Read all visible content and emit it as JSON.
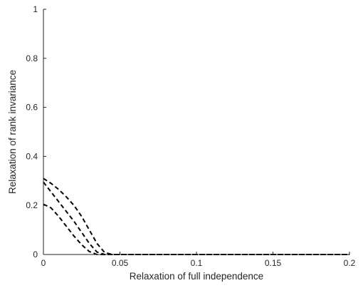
{
  "chart_data": {
    "type": "line",
    "title": "",
    "xlabel": "Relaxation of full independence",
    "ylabel": "Relaxation of rank invariance",
    "xlim": [
      0,
      0.2
    ],
    "ylim": [
      0,
      1
    ],
    "x_ticks": [
      0,
      0.05,
      0.1,
      0.15,
      0.2
    ],
    "x_tick_labels": [
      "0",
      "0.05",
      "0.1",
      "0.15",
      "0.2"
    ],
    "y_ticks": [
      0,
      0.2,
      0.4,
      0.6,
      0.8,
      1
    ],
    "y_tick_labels": [
      "0",
      "0.2",
      "0.4",
      "0.6",
      "0.8",
      "1"
    ],
    "grid": false,
    "line_style": "dashed",
    "line_color": "#000000",
    "series": [
      {
        "x": [
          0,
          0.005,
          0.01,
          0.015,
          0.02,
          0.025,
          0.03,
          0.035,
          0.04,
          0.045,
          0.05,
          0.1,
          0.15,
          0.2
        ],
        "y": [
          0.31,
          0.29,
          0.265,
          0.235,
          0.2,
          0.155,
          0.1,
          0.045,
          0.008,
          0,
          0,
          0,
          0,
          0
        ]
      },
      {
        "x": [
          0,
          0.005,
          0.01,
          0.015,
          0.02,
          0.025,
          0.03,
          0.035,
          0.04,
          0.045,
          0.05,
          0.1,
          0.15,
          0.2
        ],
        "y": [
          0.295,
          0.255,
          0.215,
          0.175,
          0.135,
          0.09,
          0.045,
          0.01,
          0,
          0,
          0,
          0,
          0,
          0
        ]
      },
      {
        "x": [
          0,
          0.005,
          0.01,
          0.015,
          0.02,
          0.025,
          0.03,
          0.035,
          0.04,
          0.05,
          0.1,
          0.15,
          0.2
        ],
        "y": [
          0.205,
          0.19,
          0.155,
          0.115,
          0.075,
          0.04,
          0.012,
          0,
          0,
          0,
          0,
          0,
          0
        ]
      }
    ]
  }
}
